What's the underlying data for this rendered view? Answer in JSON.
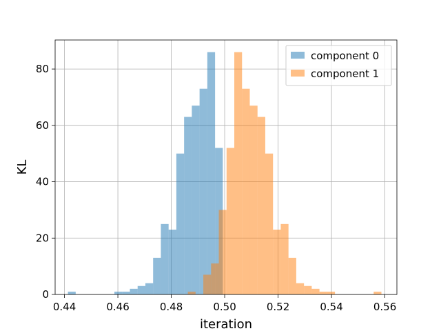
{
  "chart_data": {
    "type": "bar",
    "title": "",
    "xlabel": "iteration",
    "ylabel": "KL",
    "xlim": [
      0.4365,
      0.5645
    ],
    "ylim": [
      0,
      90.3
    ],
    "xticks": [
      0.44,
      0.46,
      0.48,
      0.5,
      0.52,
      0.54,
      0.56
    ],
    "xtick_labels": [
      "0.44",
      "0.46",
      "0.48",
      "0.50",
      "0.52",
      "0.54",
      "0.56"
    ],
    "yticks": [
      0,
      20,
      40,
      60,
      80
    ],
    "ytick_labels": [
      "0",
      "20",
      "40",
      "60",
      "80"
    ],
    "grid": true,
    "legend_position": "top-right",
    "series": [
      {
        "name": "component 0",
        "color": "#1f77b4",
        "opacity": 0.5,
        "bins": [
          {
            "x0": 0.4413,
            "x1": 0.4442,
            "y": 1
          },
          {
            "x0": 0.4442,
            "x1": 0.4471,
            "y": 0
          },
          {
            "x0": 0.4471,
            "x1": 0.45,
            "y": 0
          },
          {
            "x0": 0.45,
            "x1": 0.4529,
            "y": 0
          },
          {
            "x0": 0.4529,
            "x1": 0.4558,
            "y": 0
          },
          {
            "x0": 0.4558,
            "x1": 0.4587,
            "y": 0
          },
          {
            "x0": 0.4587,
            "x1": 0.4616,
            "y": 1
          },
          {
            "x0": 0.4616,
            "x1": 0.4645,
            "y": 1
          },
          {
            "x0": 0.4645,
            "x1": 0.4674,
            "y": 2
          },
          {
            "x0": 0.4674,
            "x1": 0.4703,
            "y": 3
          },
          {
            "x0": 0.4703,
            "x1": 0.4732,
            "y": 4
          },
          {
            "x0": 0.4732,
            "x1": 0.4761,
            "y": 13
          },
          {
            "x0": 0.4761,
            "x1": 0.479,
            "y": 25
          },
          {
            "x0": 0.479,
            "x1": 0.4819,
            "y": 23
          },
          {
            "x0": 0.4819,
            "x1": 0.4848,
            "y": 50
          },
          {
            "x0": 0.4848,
            "x1": 0.4877,
            "y": 63
          },
          {
            "x0": 0.4877,
            "x1": 0.4906,
            "y": 67
          },
          {
            "x0": 0.4906,
            "x1": 0.4935,
            "y": 73
          },
          {
            "x0": 0.4935,
            "x1": 0.4964,
            "y": 86
          },
          {
            "x0": 0.4964,
            "x1": 0.4993,
            "y": 52
          }
        ]
      },
      {
        "name": "component 1",
        "color": "#ff7f0e",
        "opacity": 0.5,
        "bins": [
          {
            "x0": 0.4862,
            "x1": 0.4891,
            "y": 1
          },
          {
            "x0": 0.4891,
            "x1": 0.492,
            "y": 0
          },
          {
            "x0": 0.492,
            "x1": 0.4949,
            "y": 7
          },
          {
            "x0": 0.4949,
            "x1": 0.4978,
            "y": 11
          },
          {
            "x0": 0.4978,
            "x1": 0.5007,
            "y": 30
          },
          {
            "x0": 0.5007,
            "x1": 0.5036,
            "y": 52
          },
          {
            "x0": 0.5036,
            "x1": 0.5065,
            "y": 86
          },
          {
            "x0": 0.5065,
            "x1": 0.5094,
            "y": 73
          },
          {
            "x0": 0.5094,
            "x1": 0.5123,
            "y": 67
          },
          {
            "x0": 0.5123,
            "x1": 0.5152,
            "y": 63
          },
          {
            "x0": 0.5152,
            "x1": 0.5181,
            "y": 50
          },
          {
            "x0": 0.5181,
            "x1": 0.521,
            "y": 23
          },
          {
            "x0": 0.521,
            "x1": 0.5239,
            "y": 25
          },
          {
            "x0": 0.5239,
            "x1": 0.5268,
            "y": 13
          },
          {
            "x0": 0.5268,
            "x1": 0.5297,
            "y": 4
          },
          {
            "x0": 0.5297,
            "x1": 0.5326,
            "y": 3
          },
          {
            "x0": 0.5326,
            "x1": 0.5355,
            "y": 2
          },
          {
            "x0": 0.5355,
            "x1": 0.5384,
            "y": 1
          },
          {
            "x0": 0.5384,
            "x1": 0.5413,
            "y": 1
          },
          {
            "x0": 0.5413,
            "x1": 0.5442,
            "y": 0
          },
          {
            "x0": 0.5442,
            "x1": 0.5471,
            "y": 0
          },
          {
            "x0": 0.5471,
            "x1": 0.55,
            "y": 0
          },
          {
            "x0": 0.55,
            "x1": 0.5529,
            "y": 0
          },
          {
            "x0": 0.5529,
            "x1": 0.5558,
            "y": 0
          },
          {
            "x0": 0.5558,
            "x1": 0.5587,
            "y": 1
          }
        ]
      }
    ]
  }
}
